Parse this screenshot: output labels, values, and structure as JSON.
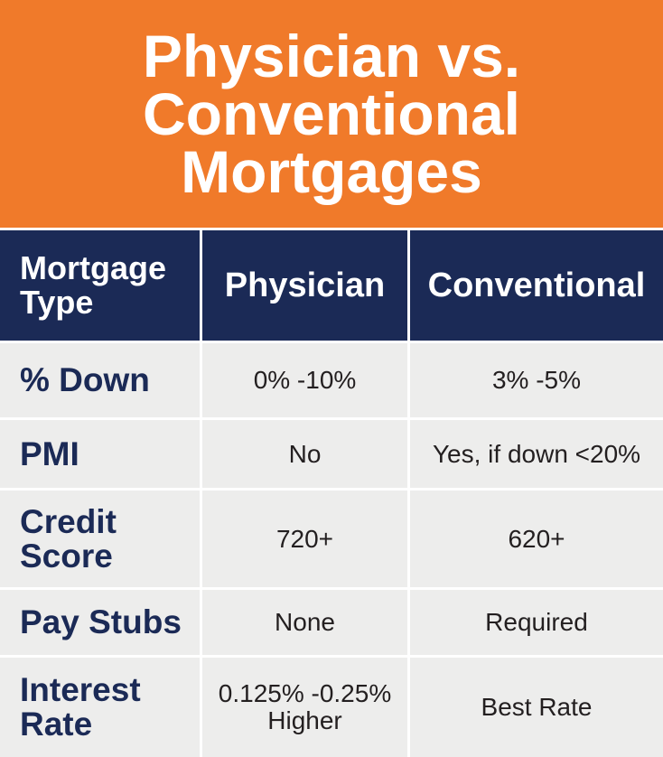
{
  "title": "Physician vs. Conventional Mortgages",
  "colors": {
    "header_bg": "#f07a2a",
    "table_header_bg": "#1b2a56",
    "cell_bg": "#ededec",
    "label_text": "#1b2a56"
  },
  "table": {
    "headers": [
      "Mortgage Type",
      "Physician",
      "Conventional"
    ],
    "rows": [
      {
        "label": "% Down",
        "physician": "0% -10%",
        "conventional": "3% -5%"
      },
      {
        "label": "PMI",
        "physician": "No",
        "conventional": "Yes, if down <20%"
      },
      {
        "label": "Credit Score",
        "physician": "720+",
        "conventional": "620+"
      },
      {
        "label": "Pay Stubs",
        "physician": "None",
        "conventional": "Required"
      },
      {
        "label": "Interest Rate",
        "physician": "0.125% -0.25% Higher",
        "conventional": "Best Rate"
      }
    ]
  }
}
